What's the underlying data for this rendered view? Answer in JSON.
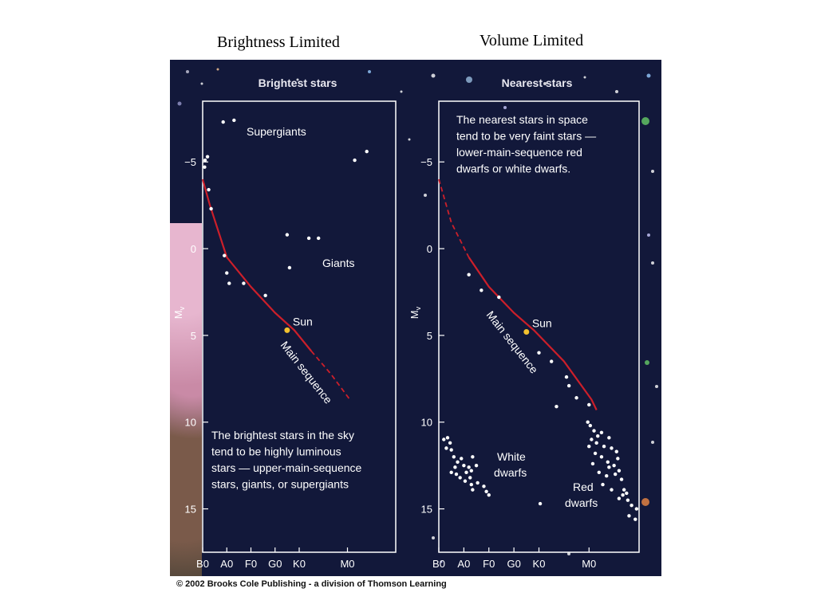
{
  "headings": {
    "left": "Brightness Limited",
    "right": "Volume Limited"
  },
  "copyright": "© 2002 Brooks Cole Publishing - a division of Thomson Learning",
  "colors": {
    "background": "#12183a",
    "axes": "#ffffff",
    "main_sequence": "#cc1f2a",
    "sun": "#f2c12e"
  },
  "chart_data": [
    {
      "type": "scatter",
      "title": "Brightest stars",
      "ylabel": "M_v",
      "ylabel_main": "M",
      "ylabel_sub": "v",
      "y_inverted": true,
      "ylim": [
        17.5,
        -8.5
      ],
      "yticks": [
        -5,
        0,
        5,
        10,
        15
      ],
      "ytick_labels": [
        "−5",
        "0",
        "5",
        "10",
        "15"
      ],
      "xtick_labels": [
        "B0",
        "A0",
        "F0",
        "G0",
        "K0",
        "M0"
      ],
      "xtick_positions": [
        0,
        1,
        2,
        3,
        4,
        6
      ],
      "xlim": [
        0,
        8
      ],
      "main_sequence_solid": [
        [
          0,
          -4
        ],
        [
          0.3,
          -2.5
        ],
        [
          1,
          0.5
        ],
        [
          2,
          2.2
        ],
        [
          3,
          3.7
        ],
        [
          3.8,
          4.7
        ],
        [
          4.5,
          5.9
        ]
      ],
      "main_sequence_dashed": [
        [
          4.5,
          5.9
        ],
        [
          5.3,
          7.2
        ],
        [
          6.1,
          8.7
        ]
      ],
      "points": [
        [
          0.85,
          -7.3
        ],
        [
          1.3,
          -7.4
        ],
        [
          0.1,
          -5.1
        ],
        [
          0.08,
          -4.7
        ],
        [
          0.25,
          -3.4
        ],
        [
          0.35,
          -2.3
        ],
        [
          0.2,
          -5.3
        ],
        [
          0.9,
          0.4
        ],
        [
          1.0,
          1.4
        ],
        [
          1.1,
          2.0
        ],
        [
          1.7,
          2.0
        ],
        [
          2.6,
          2.7
        ],
        [
          3.5,
          -0.8
        ],
        [
          4.4,
          -0.6
        ],
        [
          4.8,
          -0.6
        ],
        [
          3.6,
          1.1
        ],
        [
          6.3,
          -5.1
        ],
        [
          6.8,
          -5.6
        ]
      ],
      "sun": [
        3.5,
        4.7
      ],
      "annotations": {
        "supergiants": "Supergiants",
        "giants": "Giants",
        "sun": "Sun",
        "main_sequence": "Main sequence",
        "caption": [
          "The brightest stars in the sky",
          "tend to be highly luminous",
          "stars — upper-main-sequence",
          "stars, giants, or supergiants"
        ]
      },
      "legend": "none"
    },
    {
      "type": "scatter",
      "title": "Nearest stars",
      "ylabel": "M_v",
      "ylabel_main": "M",
      "ylabel_sub": "v",
      "y_inverted": true,
      "ylim": [
        17.5,
        -8.5
      ],
      "yticks": [
        -5,
        0,
        5,
        10,
        15
      ],
      "ytick_labels": [
        "−5",
        "0",
        "5",
        "10",
        "15"
      ],
      "xtick_labels": [
        "B0",
        "A0",
        "F0",
        "G0",
        "K0",
        "M0"
      ],
      "xtick_positions": [
        0,
        1,
        2,
        3,
        4,
        6
      ],
      "xlim": [
        0,
        8
      ],
      "main_sequence_dashed": [
        [
          0,
          -4
        ],
        [
          0.5,
          -1.5
        ],
        [
          1.2,
          0.5
        ]
      ],
      "main_sequence_solid": [
        [
          1.2,
          0.5
        ],
        [
          2,
          2.2
        ],
        [
          3,
          3.7
        ],
        [
          3.8,
          4.7
        ],
        [
          5,
          6.5
        ],
        [
          6.1,
          8.7
        ],
        [
          6.3,
          9.3
        ]
      ],
      "points": [
        [
          1.2,
          1.5
        ],
        [
          1.7,
          2.4
        ],
        [
          2.4,
          2.8
        ],
        [
          4.0,
          6.0
        ],
        [
          4.5,
          6.5
        ],
        [
          5.1,
          7.4
        ],
        [
          5.2,
          7.9
        ],
        [
          5.5,
          8.6
        ],
        [
          4.7,
          9.1
        ],
        [
          6.0,
          9.0
        ],
        [
          0.2,
          11.0
        ],
        [
          0.35,
          10.9
        ],
        [
          0.45,
          11.2
        ],
        [
          0.3,
          11.5
        ],
        [
          0.5,
          11.6
        ],
        [
          0.6,
          12.0
        ],
        [
          0.75,
          12.3
        ],
        [
          0.9,
          12.1
        ],
        [
          1.0,
          12.5
        ],
        [
          1.1,
          12.9
        ],
        [
          1.2,
          12.6
        ],
        [
          1.3,
          12.8
        ],
        [
          0.7,
          13.0
        ],
        [
          0.85,
          13.2
        ],
        [
          1.05,
          13.4
        ],
        [
          1.25,
          13.2
        ],
        [
          0.5,
          12.9
        ],
        [
          0.65,
          12.6
        ],
        [
          1.5,
          12.5
        ],
        [
          1.35,
          12.0
        ],
        [
          1.8,
          13.7
        ],
        [
          1.9,
          14.0
        ],
        [
          2.0,
          14.2
        ],
        [
          1.3,
          13.6
        ],
        [
          1.35,
          13.9
        ],
        [
          1.55,
          13.5
        ],
        [
          4.05,
          14.7
        ],
        [
          5.95,
          10.0
        ],
        [
          6.05,
          10.2
        ],
        [
          6.2,
          10.5
        ],
        [
          6.5,
          10.6
        ],
        [
          6.8,
          10.9
        ],
        [
          6.1,
          11.0
        ],
        [
          6.3,
          11.2
        ],
        [
          6.6,
          11.4
        ],
        [
          6.9,
          11.5
        ],
        [
          7.1,
          11.7
        ],
        [
          6.0,
          11.4
        ],
        [
          6.25,
          11.8
        ],
        [
          6.5,
          12.0
        ],
        [
          6.75,
          12.3
        ],
        [
          7.0,
          12.5
        ],
        [
          7.2,
          12.8
        ],
        [
          6.4,
          12.9
        ],
        [
          6.7,
          13.1
        ],
        [
          7.05,
          13.0
        ],
        [
          7.3,
          13.3
        ],
        [
          6.55,
          13.6
        ],
        [
          6.9,
          13.9
        ],
        [
          7.35,
          14.2
        ],
        [
          7.55,
          14.5
        ],
        [
          7.7,
          14.8
        ],
        [
          7.9,
          15.0
        ],
        [
          7.6,
          15.4
        ],
        [
          7.85,
          15.6
        ],
        [
          7.2,
          14.4
        ],
        [
          7.4,
          13.9
        ],
        [
          6.8,
          12.6
        ],
        [
          6.35,
          10.8
        ],
        [
          7.15,
          12.1
        ],
        [
          7.5,
          14.1
        ],
        [
          6.15,
          12.4
        ]
      ],
      "sun": [
        3.5,
        4.8
      ],
      "annotations": {
        "sun": "Sun",
        "main_sequence": "Main sequence",
        "white_dwarfs": [
          "White",
          "dwarfs"
        ],
        "red_dwarfs": [
          "Red",
          "dwarfs"
        ],
        "caption": [
          "The nearest stars in space",
          "tend to be very faint stars —",
          "lower-main-sequence red",
          "dwarfs or white dwarfs."
        ]
      },
      "legend": "none"
    }
  ]
}
